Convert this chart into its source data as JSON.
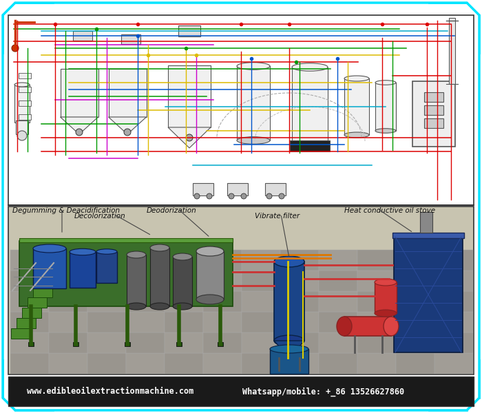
{
  "bg_color": "#ffffff",
  "border_color": "#00e5ff",
  "footer_bg": "#1a1a1a",
  "footer_text1": "www.edibleoilextractionmachine.com",
  "footer_text2": "Whatsapp/mobile: +_86 13526627860",
  "footer_text_color": "#ffffff",
  "label_degumming": "Degumming & Deacidification",
  "label_decolorization": "Decolorization",
  "label_deodorization": "Deodorization",
  "label_vibrate": "Vibrate filter",
  "label_heat": "Heat conductive oil stove",
  "red": "#dd0000",
  "green": "#009900",
  "blue": "#0055cc",
  "yellow": "#ddbb00",
  "magenta": "#cc00cc",
  "cyan2": "#00aacc",
  "border_width": 2.5
}
